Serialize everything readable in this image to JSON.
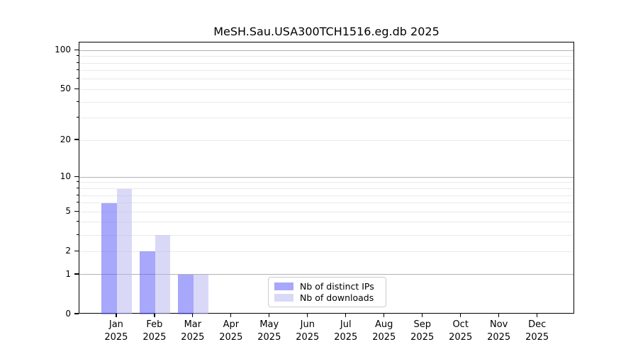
{
  "chart_data": {
    "type": "bar",
    "title": "MeSH.Sau.USA300TCH1516.eg.db 2025",
    "categories": [
      "Jan",
      "Feb",
      "Mar",
      "Apr",
      "May",
      "Jun",
      "Jul",
      "Aug",
      "Sep",
      "Oct",
      "Nov",
      "Dec"
    ],
    "category_year": "2025",
    "series": [
      {
        "name": "Nb of distinct IPs",
        "color": "rgba(95,95,248,0.55)",
        "values": [
          6,
          2,
          1,
          0,
          0,
          0,
          0,
          0,
          0,
          0,
          0,
          0
        ]
      },
      {
        "name": "Nb of downloads",
        "color": "rgba(185,185,240,0.55)",
        "values": [
          8,
          3,
          1,
          0,
          0,
          0,
          0,
          0,
          0,
          0,
          0,
          0
        ]
      }
    ],
    "yscale": "log1p",
    "ylim": [
      0,
      115
    ],
    "xlim": [
      -0.98,
      11.97
    ],
    "bar_width": 0.4,
    "yticks": [
      0,
      1,
      2,
      5,
      10,
      20,
      50,
      100
    ],
    "gridlines_major": [
      1,
      10,
      100
    ],
    "gridlines_minor": [
      2,
      3,
      4,
      5,
      6,
      7,
      8,
      9,
      20,
      30,
      40,
      50,
      60,
      70,
      80,
      90
    ],
    "grid": true,
    "legend_position": "lower center"
  },
  "colors": {
    "background": "#ffffff",
    "spine": "#000000",
    "grid_major": "#b2b2b2",
    "grid_minor": "#e9e9e9",
    "tick_label": "#000000",
    "legend_border": "#cccccc",
    "legend_background": "rgba(255,255,255,0.8)"
  }
}
